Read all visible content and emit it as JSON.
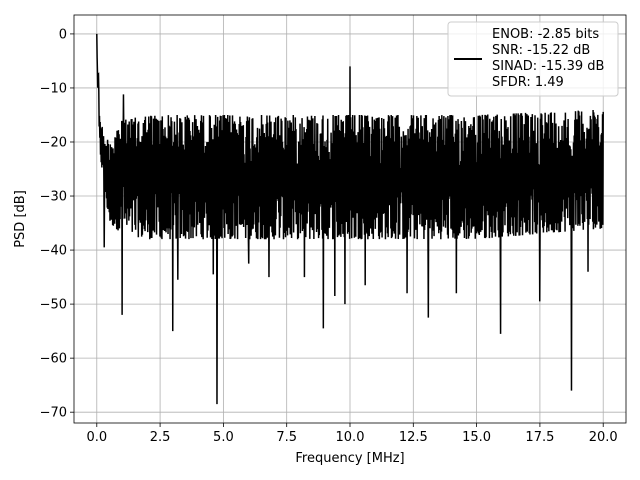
{
  "chart_data": {
    "type": "line",
    "xlabel": "Frequency [MHz]",
    "ylabel": "PSD [dB]",
    "xlim": [
      -0.9,
      20.9
    ],
    "ylim": [
      -72,
      3.5
    ],
    "xticks": [
      0.0,
      2.5,
      5.0,
      7.5,
      10.0,
      12.5,
      15.0,
      17.5,
      20.0
    ],
    "xtick_labels": [
      "0.0",
      "2.5",
      "5.0",
      "7.5",
      "10.0",
      "12.5",
      "15.0",
      "17.5",
      "20.0"
    ],
    "yticks": [
      0,
      -10,
      -20,
      -30,
      -40,
      -50,
      -60,
      -70
    ],
    "ytick_labels": [
      "0",
      "−10",
      "−20",
      "−30",
      "−40",
      "−50",
      "−60",
      "−70"
    ],
    "grid": true,
    "legend_placement": "top-right",
    "series": [
      {
        "name": "ENOB: -2.85 bits\nSNR: -15.22 dB\nSINAD: -15.39 dB\nSFDR: 1.49",
        "color": "#000000",
        "x_range": [
          0.0,
          20.0
        ],
        "noise_band_envelope": {
          "x": [
            0.0,
            0.1,
            0.3,
            0.5,
            1.0,
            2.0,
            5.0,
            10.0,
            15.0,
            20.0
          ],
          "upper": [
            0,
            -13,
            -20,
            -19,
            -16,
            -15,
            -15,
            -15,
            -15,
            -14
          ],
          "lower": [
            -5,
            -21,
            -29,
            -35,
            -37,
            -38,
            -38,
            -38,
            -38,
            -36
          ]
        },
        "peaks": [
          {
            "x": 0.0,
            "y": 0.0
          },
          {
            "x": 1.05,
            "y": -11.2
          },
          {
            "x": 10.0,
            "y": -6.0
          }
        ],
        "dips": [
          {
            "x": 0.3,
            "y": -39.5
          },
          {
            "x": 1.0,
            "y": -52.0
          },
          {
            "x": 2.5,
            "y": -37.5
          },
          {
            "x": 3.0,
            "y": -55.0
          },
          {
            "x": 3.2,
            "y": -45.5
          },
          {
            "x": 4.6,
            "y": -44.5
          },
          {
            "x": 4.75,
            "y": -68.5
          },
          {
            "x": 6.0,
            "y": -42.5
          },
          {
            "x": 6.8,
            "y": -45.0
          },
          {
            "x": 8.2,
            "y": -45.0
          },
          {
            "x": 8.95,
            "y": -54.5
          },
          {
            "x": 9.4,
            "y": -48.5
          },
          {
            "x": 9.8,
            "y": -50.0
          },
          {
            "x": 10.6,
            "y": -46.5
          },
          {
            "x": 12.25,
            "y": -48.0
          },
          {
            "x": 13.1,
            "y": -52.5
          },
          {
            "x": 14.2,
            "y": -48.0
          },
          {
            "x": 15.95,
            "y": -55.5
          },
          {
            "x": 17.5,
            "y": -49.5
          },
          {
            "x": 18.75,
            "y": -66.0
          },
          {
            "x": 19.4,
            "y": -44.0
          }
        ]
      }
    ]
  }
}
